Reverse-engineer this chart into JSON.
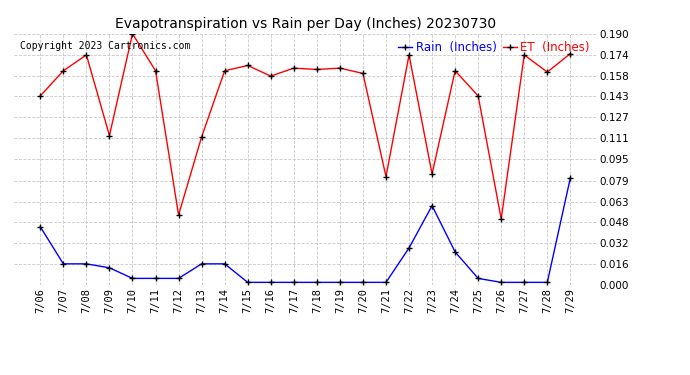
{
  "title": "Evapotranspiration vs Rain per Day (Inches) 20230730",
  "copyright": "Copyright 2023 Cartronics.com",
  "legend_rain": "Rain  (Inches)",
  "legend_et": "ET  (Inches)",
  "x_labels": [
    "7/06",
    "7/07",
    "7/08",
    "7/09",
    "7/10",
    "7/11",
    "7/12",
    "7/13",
    "7/14",
    "7/15",
    "7/16",
    "7/17",
    "7/18",
    "7/19",
    "7/20",
    "7/21",
    "7/22",
    "7/23",
    "7/24",
    "7/25",
    "7/26",
    "7/27",
    "7/28",
    "7/29"
  ],
  "rain_values": [
    0.044,
    0.016,
    0.016,
    0.013,
    0.005,
    0.005,
    0.005,
    0.016,
    0.016,
    0.002,
    0.002,
    0.002,
    0.002,
    0.002,
    0.002,
    0.002,
    0.028,
    0.06,
    0.025,
    0.005,
    0.002,
    0.002,
    0.002,
    0.081
  ],
  "et_values": [
    0.143,
    0.162,
    0.174,
    0.113,
    0.19,
    0.162,
    0.053,
    0.112,
    0.162,
    0.166,
    0.158,
    0.164,
    0.163,
    0.164,
    0.16,
    0.082,
    0.174,
    0.084,
    0.162,
    0.143,
    0.05,
    0.174,
    0.161,
    0.175
  ],
  "ylim": [
    0.0,
    0.19
  ],
  "yticks": [
    0.0,
    0.016,
    0.032,
    0.048,
    0.063,
    0.079,
    0.095,
    0.111,
    0.127,
    0.143,
    0.158,
    0.174,
    0.19
  ],
  "rain_color": "blue",
  "et_color": "red",
  "marker_color": "black",
  "bg_color": "#ffffff",
  "grid_color": "#bbbbbb",
  "title_fontsize": 10,
  "tick_fontsize": 7.5,
  "legend_fontsize": 8.5,
  "copyright_fontsize": 7
}
